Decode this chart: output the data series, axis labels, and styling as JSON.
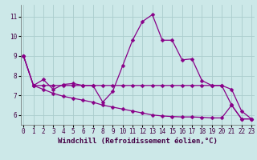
{
  "xlabel": "Windchill (Refroidissement éolien,°C)",
  "background_color": "#cce8e8",
  "grid_color": "#aacccc",
  "line_color": "#880088",
  "x_ticks": [
    0,
    1,
    2,
    3,
    4,
    5,
    6,
    7,
    8,
    9,
    10,
    11,
    12,
    13,
    14,
    15,
    16,
    17,
    18,
    19,
    20,
    21,
    22,
    23
  ],
  "y_ticks": [
    6,
    7,
    8,
    9,
    10,
    11
  ],
  "xlim": [
    -0.3,
    23.3
  ],
  "ylim": [
    5.5,
    11.6
  ],
  "series1": [
    9.0,
    7.5,
    7.8,
    7.3,
    7.55,
    7.6,
    7.5,
    7.5,
    6.65,
    7.2,
    8.5,
    9.8,
    10.75,
    11.1,
    9.8,
    9.8,
    8.8,
    8.85,
    7.75,
    7.5,
    7.5,
    6.5,
    5.8,
    5.8
  ],
  "series2": [
    9.0,
    7.5,
    7.5,
    7.5,
    7.5,
    7.5,
    7.5,
    7.5,
    7.5,
    7.5,
    7.5,
    7.5,
    7.5,
    7.5,
    7.5,
    7.5,
    7.5,
    7.5,
    7.5,
    7.5,
    7.5,
    7.3,
    6.2,
    5.8
  ],
  "series3": [
    9.0,
    7.5,
    7.3,
    7.1,
    6.95,
    6.85,
    6.75,
    6.65,
    6.5,
    6.4,
    6.3,
    6.2,
    6.1,
    6.0,
    5.95,
    5.92,
    5.9,
    5.9,
    5.88,
    5.85,
    5.85,
    6.5,
    5.8,
    5.8
  ],
  "markersize": 2.5,
  "linewidth": 0.9,
  "tick_fontsize": 5.5,
  "xlabel_fontsize": 6.5
}
